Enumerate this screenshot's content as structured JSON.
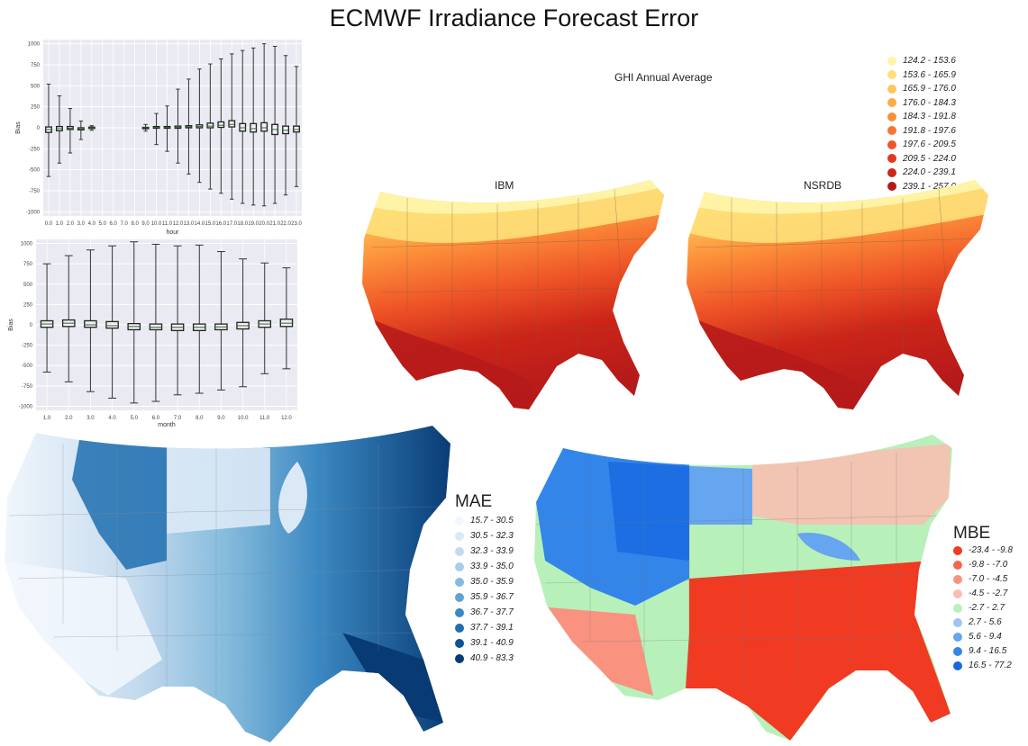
{
  "title": "ECMWF Irradiance Forecast Error",
  "chart_data": [
    {
      "type": "box",
      "xlabel": "hour",
      "ylabel": "Bias",
      "ylim": [
        -1050,
        1050
      ],
      "yticks": [
        "1000",
        "750",
        "500",
        "250",
        "0",
        "-250",
        "-500",
        "-750",
        "-1000"
      ],
      "categories": [
        "0.0",
        "1.0",
        "2.0",
        "3.0",
        "4.0",
        "5.0",
        "6.0",
        "7.0",
        "8.0",
        "9.0",
        "10.0",
        "11.0",
        "12.0",
        "13.0",
        "14.0",
        "15.0",
        "16.0",
        "17.0",
        "18.0",
        "19.0",
        "20.0",
        "21.0",
        "22.0",
        "23.0"
      ],
      "boxes": [
        {
          "min": -580,
          "q1": -55,
          "median": -20,
          "q3": 10,
          "max": 520
        },
        {
          "min": -420,
          "q1": -35,
          "median": -10,
          "q3": 15,
          "max": 380
        },
        {
          "min": -300,
          "q1": -20,
          "median": -5,
          "q3": 15,
          "max": 230
        },
        {
          "min": -140,
          "q1": -25,
          "median": -15,
          "q3": 0,
          "max": 80
        },
        {
          "min": -30,
          "q1": -8,
          "median": 0,
          "q3": 8,
          "max": 25
        },
        null,
        null,
        null,
        null,
        {
          "min": -40,
          "q1": -5,
          "median": 0,
          "q3": 5,
          "max": 40
        },
        {
          "min": -200,
          "q1": -5,
          "median": 5,
          "q3": 15,
          "max": 170
        },
        {
          "min": -280,
          "q1": -5,
          "median": 5,
          "q3": 15,
          "max": 260
        },
        {
          "min": -420,
          "q1": -5,
          "median": 5,
          "q3": 20,
          "max": 460
        },
        {
          "min": -550,
          "q1": 0,
          "median": 10,
          "q3": 25,
          "max": 580
        },
        {
          "min": -650,
          "q1": 0,
          "median": 15,
          "q3": 35,
          "max": 700
        },
        {
          "min": -730,
          "q1": 0,
          "median": 20,
          "q3": 55,
          "max": 760
        },
        {
          "min": -780,
          "q1": 5,
          "median": 30,
          "q3": 70,
          "max": 820
        },
        {
          "min": -850,
          "q1": 10,
          "median": 40,
          "q3": 85,
          "max": 880
        },
        {
          "min": -900,
          "q1": -40,
          "median": 0,
          "q3": 50,
          "max": 920
        },
        {
          "min": -920,
          "q1": -50,
          "median": -10,
          "q3": 50,
          "max": 950
        },
        {
          "min": -930,
          "q1": -40,
          "median": 0,
          "q3": 60,
          "max": 1000
        },
        {
          "min": -900,
          "q1": -80,
          "median": -20,
          "q3": 40,
          "max": 970
        },
        {
          "min": -800,
          "q1": -70,
          "median": -30,
          "q3": 20,
          "max": 860
        },
        {
          "min": -700,
          "q1": -50,
          "median": -20,
          "q3": 20,
          "max": 730
        }
      ]
    },
    {
      "type": "box",
      "xlabel": "month",
      "ylabel": "Bias",
      "ylim": [
        -1050,
        1050
      ],
      "yticks": [
        "1000",
        "750",
        "500",
        "250",
        "0",
        "-250",
        "-500",
        "-750",
        "-1000"
      ],
      "categories": [
        "1.0",
        "2.0",
        "3.0",
        "4.0",
        "5.0",
        "6.0",
        "7.0",
        "8.0",
        "9.0",
        "10.0",
        "11.0",
        "12.0"
      ],
      "boxes": [
        {
          "min": -580,
          "q1": -30,
          "median": 10,
          "q3": 50,
          "max": 750
        },
        {
          "min": -700,
          "q1": -20,
          "median": 20,
          "q3": 60,
          "max": 850
        },
        {
          "min": -820,
          "q1": -30,
          "median": 0,
          "q3": 50,
          "max": 920
        },
        {
          "min": -900,
          "q1": -40,
          "median": -10,
          "q3": 40,
          "max": 970
        },
        {
          "min": -960,
          "q1": -60,
          "median": -20,
          "q3": 15,
          "max": 1020
        },
        {
          "min": -940,
          "q1": -60,
          "median": -30,
          "q3": 10,
          "max": 990
        },
        {
          "min": -860,
          "q1": -70,
          "median": -30,
          "q3": 10,
          "max": 970
        },
        {
          "min": -840,
          "q1": -70,
          "median": -30,
          "q3": 10,
          "max": 980
        },
        {
          "min": -800,
          "q1": -60,
          "median": -25,
          "q3": 10,
          "max": 900
        },
        {
          "min": -760,
          "q1": -50,
          "median": -10,
          "q3": 30,
          "max": 810
        },
        {
          "min": -600,
          "q1": -30,
          "median": 10,
          "q3": 50,
          "max": 760
        },
        {
          "min": -540,
          "q1": -20,
          "median": 20,
          "q3": 70,
          "max": 700
        }
      ]
    }
  ],
  "ghi": {
    "title": "GHI Annual Average",
    "map_left_label": "IBM",
    "map_right_label": "NSRDB",
    "legend": [
      {
        "label": "124.2 - 153.6",
        "color": "#fff3a6"
      },
      {
        "label": "153.6 - 165.9",
        "color": "#fee07a"
      },
      {
        "label": "165.9 - 176.0",
        "color": "#fec659"
      },
      {
        "label": "176.0 - 184.3",
        "color": "#fdab46"
      },
      {
        "label": "184.3 - 191.8",
        "color": "#fc8f3a"
      },
      {
        "label": "191.8 - 197.6",
        "color": "#f87531"
      },
      {
        "label": "197.6 - 209.5",
        "color": "#ef5527"
      },
      {
        "label": "209.5 - 224.0",
        "color": "#e0381f"
      },
      {
        "label": "224.0 - 239.1",
        "color": "#cc2519"
      },
      {
        "label": "239.1 - 257.0",
        "color": "#b51a1a"
      }
    ]
  },
  "mae": {
    "title": "MAE",
    "legend": [
      {
        "label": "15.7 - 30.5",
        "color": "#f2f7fd"
      },
      {
        "label": "30.5 - 32.3",
        "color": "#dbe9f6"
      },
      {
        "label": "32.3 - 33.9",
        "color": "#c4daee"
      },
      {
        "label": "33.9 - 35.0",
        "color": "#a8cde4"
      },
      {
        "label": "35.0 - 35.9",
        "color": "#85bbdc"
      },
      {
        "label": "35.9 - 36.7",
        "color": "#5fa3d1"
      },
      {
        "label": "36.7 - 37.7",
        "color": "#3b88c2"
      },
      {
        "label": "37.7 - 39.1",
        "color": "#1f6eb0"
      },
      {
        "label": "39.1 - 40.9",
        "color": "#0d5396"
      },
      {
        "label": "40.9 - 83.3",
        "color": "#083a73"
      }
    ]
  },
  "mbe": {
    "title": "MBE",
    "legend": [
      {
        "label": "-23.4 - -9.8",
        "color": "#f03a22"
      },
      {
        "label": "-9.8 - -7.0",
        "color": "#f66650"
      },
      {
        "label": "-7.0 - -4.5",
        "color": "#fa9280"
      },
      {
        "label": "-4.5 - -2.7",
        "color": "#fbbcb0"
      },
      {
        "label": "-2.7 - 2.7",
        "color": "#b8f0b9"
      },
      {
        "label": "2.7 - 5.6",
        "color": "#9fc5f4"
      },
      {
        "label": "5.6 - 9.4",
        "color": "#66a5ef"
      },
      {
        "label": "9.4 - 16.5",
        "color": "#3485ea"
      },
      {
        "label": "16.5 - 77.2",
        "color": "#1668e0"
      }
    ]
  }
}
